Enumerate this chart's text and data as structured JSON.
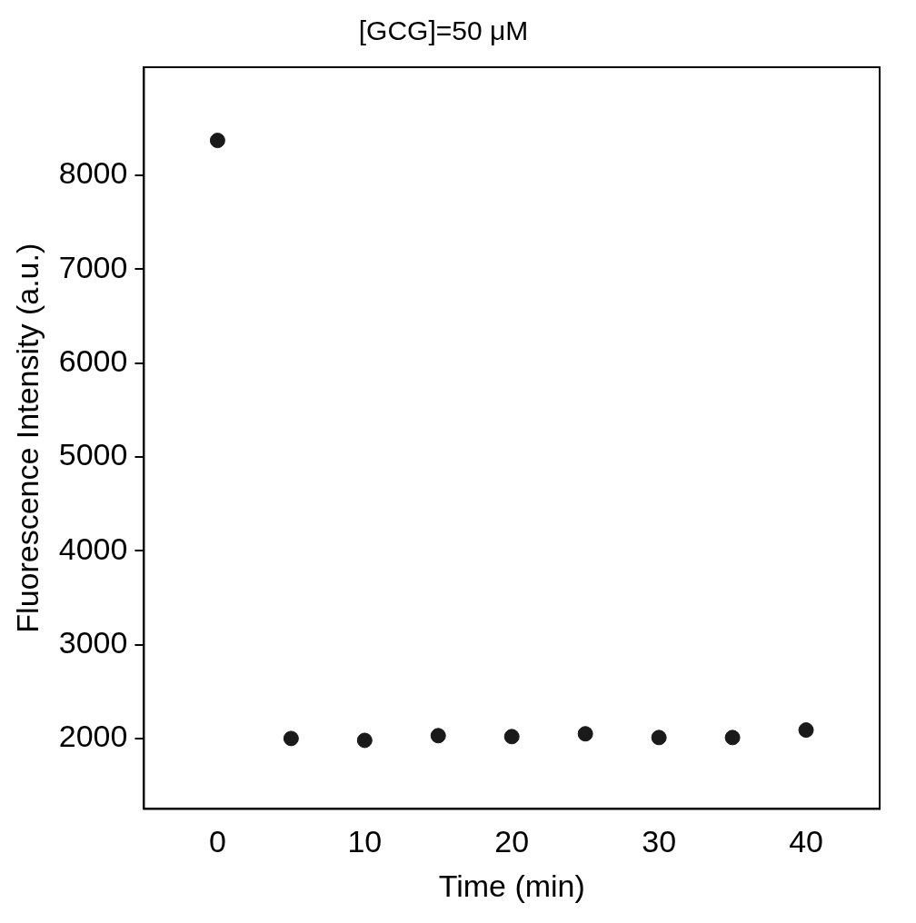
{
  "chart_data": {
    "type": "scatter",
    "title": "[GCG]=50 μM",
    "xlabel": "Time (min)",
    "ylabel": "Fluorescence Intensity (a.u.)",
    "x": [
      0,
      5,
      10,
      15,
      20,
      25,
      30,
      35,
      40
    ],
    "series": [
      {
        "color": "#1a1a1a",
        "values": [
          8370,
          2000,
          1980,
          2030,
          2020,
          2050,
          2010,
          2010,
          2090
        ]
      }
    ],
    "xlim": [
      -5,
      45
    ],
    "xticks": [
      0,
      10,
      20,
      30,
      40
    ],
    "ylim": [
      1250,
      9150
    ],
    "yticks": [
      2000,
      3000,
      4000,
      5000,
      6000,
      7000,
      8000
    ],
    "grid": false,
    "legend": false,
    "marker": "circle"
  }
}
